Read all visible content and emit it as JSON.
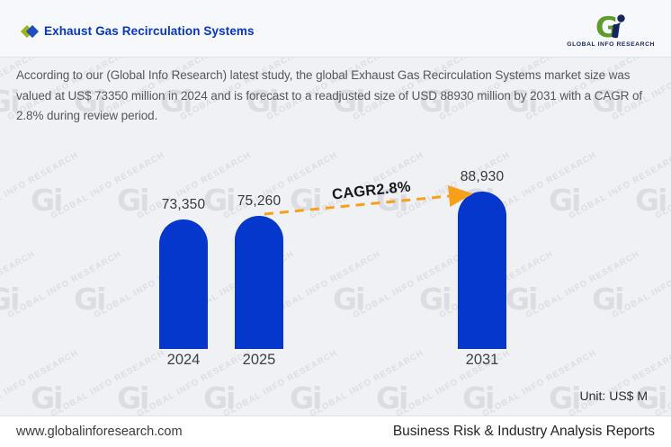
{
  "header": {
    "title": "Exhaust Gas Recirculation Systems",
    "logo_name": "GLOBAL INFO RESEARCH"
  },
  "description": "According to our (Global Info Research) latest study, the global Exhaust Gas Recirculation Systems market size was valued at US$ 73350 million in 2024 and is forecast to a readjusted size of USD 88930 million by 2031 with a CAGR of 2.8% during review period.",
  "chart_data": {
    "type": "bar",
    "categories": [
      "2024",
      "2025",
      "2031"
    ],
    "values": [
      73350,
      75260,
      88930
    ],
    "value_labels": [
      "73,350",
      "75,260",
      "88,930"
    ],
    "annotation": "CAGR2.8%",
    "unit_label": "Unit: US$ M",
    "ylim": [
      0,
      95000
    ],
    "grid": false,
    "legend": false,
    "bar_color": "#0537cd",
    "arrow_color": "#f9a01b"
  },
  "footer": {
    "website": "www.globalinforesearch.com",
    "tagline": "Business Risk & Industry Analysis Reports"
  },
  "watermark": {
    "mark": "Gi",
    "text": "GLOBAL INFO RESEARCH"
  }
}
